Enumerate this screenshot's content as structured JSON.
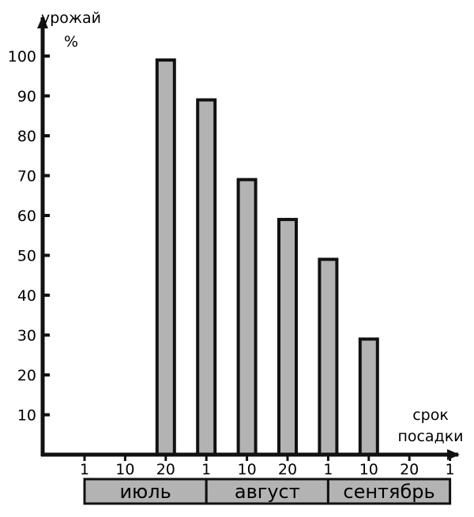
{
  "chart_data": {
    "type": "bar",
    "ylabel_lines": [
      "урожай",
      "%"
    ],
    "xlabel_lines": [
      "срок",
      "посадки"
    ],
    "yticks": [
      10,
      20,
      30,
      40,
      50,
      60,
      70,
      80,
      90,
      100
    ],
    "ylim": [
      0,
      100
    ],
    "xtick_labels": [
      "1",
      "10",
      "20",
      "1",
      "10",
      "20",
      "1",
      "10",
      "20",
      "1"
    ],
    "months": [
      "июль",
      "август",
      "сентябрь"
    ],
    "bars": [
      {
        "tick_index": 2,
        "value": 99
      },
      {
        "tick_index": 3,
        "value": 89
      },
      {
        "tick_index": 4,
        "value": 69
      },
      {
        "tick_index": 5,
        "value": 59
      },
      {
        "tick_index": 6,
        "value": 49
      },
      {
        "tick_index": 7,
        "value": 29
      }
    ],
    "grid": false,
    "colors": {
      "bar_fill": "#b3b3b3",
      "bar_stroke": "#111111",
      "month_band": "#b3b3b3",
      "axis": "#111111"
    }
  }
}
